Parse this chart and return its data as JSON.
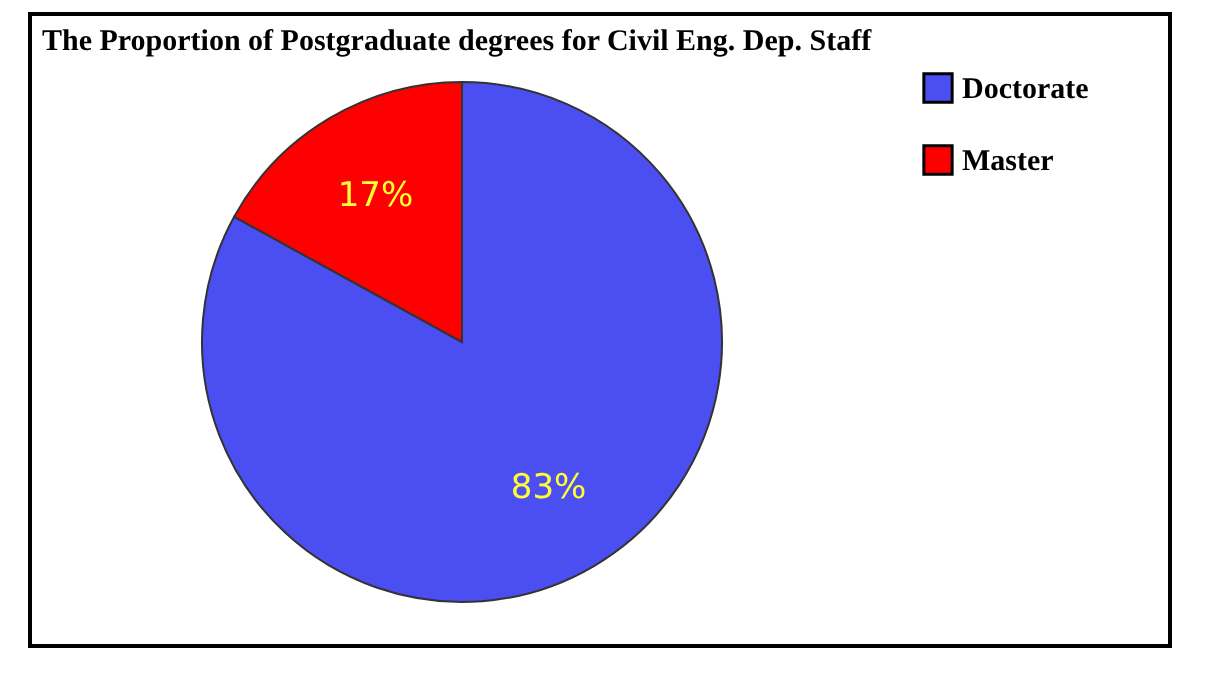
{
  "chart_data": {
    "type": "pie",
    "title": "The Proportion of Postgraduate degrees for Civil Eng. Dep. Staff",
    "categories": [
      "Doctorate",
      "Master"
    ],
    "values": [
      83,
      17
    ],
    "colors": [
      "#4b4ff2",
      "#ff0000"
    ],
    "value_labels": [
      "83%",
      "17%"
    ],
    "legend": "right"
  }
}
